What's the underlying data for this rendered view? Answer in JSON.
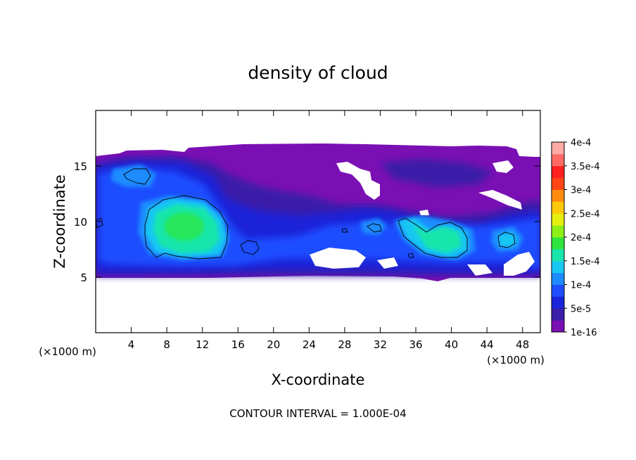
{
  "chart_data": {
    "type": "heatmap",
    "title": "density of cloud",
    "xlabel": "X-coordinate",
    "ylabel": "Z-coordinate",
    "x_unit_left": "(×1000 m)",
    "x_unit_right": "(×1000 m)",
    "xlim": [
      0,
      50
    ],
    "ylim": [
      0,
      20
    ],
    "x_ticks": [
      4,
      8,
      12,
      16,
      20,
      24,
      28,
      32,
      36,
      40,
      44,
      48
    ],
    "y_ticks": [
      5,
      10,
      15
    ],
    "colorbar": {
      "ticks": [
        "1e-16",
        "5e-5",
        "1e-4",
        "1.5e-4",
        "2e-4",
        "2.5e-4",
        "3e-4",
        "3.5e-4",
        "4e-4"
      ],
      "levels": [
        "#7a10b4",
        "#3a1ea8",
        "#1a24d8",
        "#1e4eff",
        "#1e8cff",
        "#19c8f2",
        "#18e6aa",
        "#2ee63c",
        "#8cf018",
        "#e6ee10",
        "#ffc80a",
        "#ff8c10",
        "#ff4614",
        "#ff2020",
        "#ff6a64",
        "#ffaaa4"
      ]
    },
    "grid": false,
    "regions": [
      {
        "name": "cloud extent (1e-16 to 5e-5)",
        "x_range": [
          0,
          50
        ],
        "z_range": [
          5,
          16.5
        ]
      },
      {
        "name": "core near x=10",
        "x_range": [
          4.5,
          14.8
        ],
        "z_range": [
          6.8,
          12.2
        ],
        "peak": "1.5e-4"
      },
      {
        "name": "core near x=38",
        "x_range": [
          34.5,
          42
        ],
        "z_range": [
          7,
          10.2
        ],
        "peak": "1.5e-4"
      },
      {
        "name": "core near x=5",
        "x_range": [
          3.4,
          6
        ],
        "z_range": [
          13.3,
          14.6
        ],
        "peak": "1e-4"
      }
    ]
  },
  "footer": {
    "contour_interval": "CONTOUR INTERVAL = 1.000E-04"
  }
}
